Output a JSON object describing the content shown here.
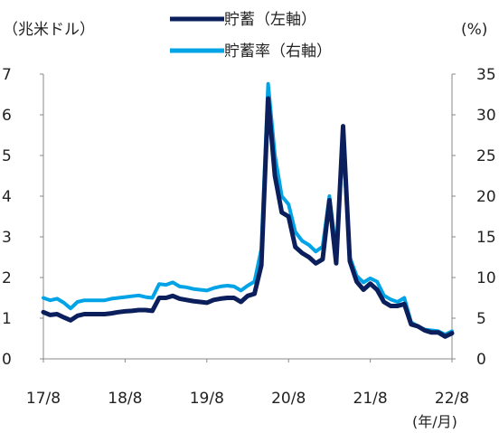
{
  "chart_data": {
    "type": "line",
    "y_left_label": "（兆米ドル）",
    "y_right_label": "(%)",
    "x_unit_label": "(年/月)",
    "x_ticks": [
      "17/8",
      "18/8",
      "19/8",
      "20/8",
      "21/8",
      "22/8"
    ],
    "y_left_ticks": [
      "0",
      "1",
      "2",
      "3",
      "4",
      "5",
      "6",
      "7"
    ],
    "y_right_ticks": [
      "0",
      "5",
      "10",
      "15",
      "20",
      "25",
      "30",
      "35"
    ],
    "y_left_range": [
      0,
      7
    ],
    "y_right_range": [
      0,
      35
    ],
    "x_range": [
      "2017-08",
      "2022-08"
    ],
    "legend_position": "top-center",
    "series": [
      {
        "name": "貯蓄（左軸）",
        "axis": "left",
        "color": "#0b1f5c",
        "x": [
          "2017-08",
          "2017-09",
          "2017-10",
          "2017-11",
          "2017-12",
          "2018-01",
          "2018-02",
          "2018-03",
          "2018-04",
          "2018-05",
          "2018-06",
          "2018-07",
          "2018-08",
          "2018-09",
          "2018-10",
          "2018-11",
          "2018-12",
          "2019-01",
          "2019-02",
          "2019-03",
          "2019-04",
          "2019-05",
          "2019-06",
          "2019-07",
          "2019-08",
          "2019-09",
          "2019-10",
          "2019-11",
          "2019-12",
          "2020-01",
          "2020-02",
          "2020-03",
          "2020-04",
          "2020-05",
          "2020-06",
          "2020-07",
          "2020-08",
          "2020-09",
          "2020-10",
          "2020-11",
          "2020-12",
          "2021-01",
          "2021-02",
          "2021-03",
          "2021-04",
          "2021-05",
          "2021-06",
          "2021-07",
          "2021-08",
          "2021-09",
          "2021-10",
          "2021-11",
          "2021-12",
          "2022-01",
          "2022-02",
          "2022-03",
          "2022-04",
          "2022-05",
          "2022-06",
          "2022-07",
          "2022-08"
        ],
        "y": [
          1.15,
          1.08,
          1.1,
          1.02,
          0.95,
          1.06,
          1.1,
          1.1,
          1.1,
          1.1,
          1.12,
          1.15,
          1.17,
          1.18,
          1.2,
          1.2,
          1.18,
          1.5,
          1.5,
          1.55,
          1.48,
          1.45,
          1.42,
          1.4,
          1.38,
          1.45,
          1.48,
          1.5,
          1.5,
          1.4,
          1.55,
          1.6,
          2.3,
          6.4,
          4.5,
          3.6,
          3.5,
          2.75,
          2.6,
          2.5,
          2.35,
          2.45,
          3.9,
          2.35,
          5.72,
          2.4,
          1.9,
          1.7,
          1.85,
          1.7,
          1.4,
          1.3,
          1.3,
          1.35,
          0.85,
          0.8,
          0.7,
          0.65,
          0.65,
          0.55,
          0.63
        ]
      },
      {
        "name": "貯蓄率（右軸）",
        "axis": "right",
        "color": "#00a3e6",
        "x": [
          "2017-08",
          "2017-09",
          "2017-10",
          "2017-11",
          "2017-12",
          "2018-01",
          "2018-02",
          "2018-03",
          "2018-04",
          "2018-05",
          "2018-06",
          "2018-07",
          "2018-08",
          "2018-09",
          "2018-10",
          "2018-11",
          "2018-12",
          "2019-01",
          "2019-02",
          "2019-03",
          "2019-04",
          "2019-05",
          "2019-06",
          "2019-07",
          "2019-08",
          "2019-09",
          "2019-10",
          "2019-11",
          "2019-12",
          "2020-01",
          "2020-02",
          "2020-03",
          "2020-04",
          "2020-05",
          "2020-06",
          "2020-07",
          "2020-08",
          "2020-09",
          "2020-10",
          "2020-11",
          "2020-12",
          "2021-01",
          "2021-02",
          "2021-03",
          "2021-04",
          "2021-05",
          "2021-06",
          "2021-07",
          "2021-08",
          "2021-09",
          "2021-10",
          "2021-11",
          "2021-12",
          "2022-01",
          "2022-02",
          "2022-03",
          "2022-04",
          "2022-05",
          "2022-06",
          "2022-07",
          "2022-08"
        ],
        "y": [
          7.5,
          7.2,
          7.4,
          6.9,
          6.2,
          7.0,
          7.2,
          7.2,
          7.2,
          7.2,
          7.4,
          7.5,
          7.6,
          7.7,
          7.8,
          7.6,
          7.5,
          9.2,
          9.1,
          9.4,
          8.9,
          8.8,
          8.6,
          8.5,
          8.4,
          8.7,
          8.9,
          9.0,
          8.9,
          8.4,
          9.0,
          9.5,
          13.5,
          33.8,
          25.0,
          20.0,
          19.0,
          15.6,
          14.5,
          14.0,
          13.2,
          13.8,
          20.0,
          13.2,
          26.3,
          12.5,
          10.2,
          9.4,
          9.9,
          9.5,
          7.8,
          7.3,
          7.0,
          7.5,
          4.5,
          4.0,
          3.6,
          3.5,
          3.4,
          3.0,
          3.4
        ]
      }
    ]
  }
}
